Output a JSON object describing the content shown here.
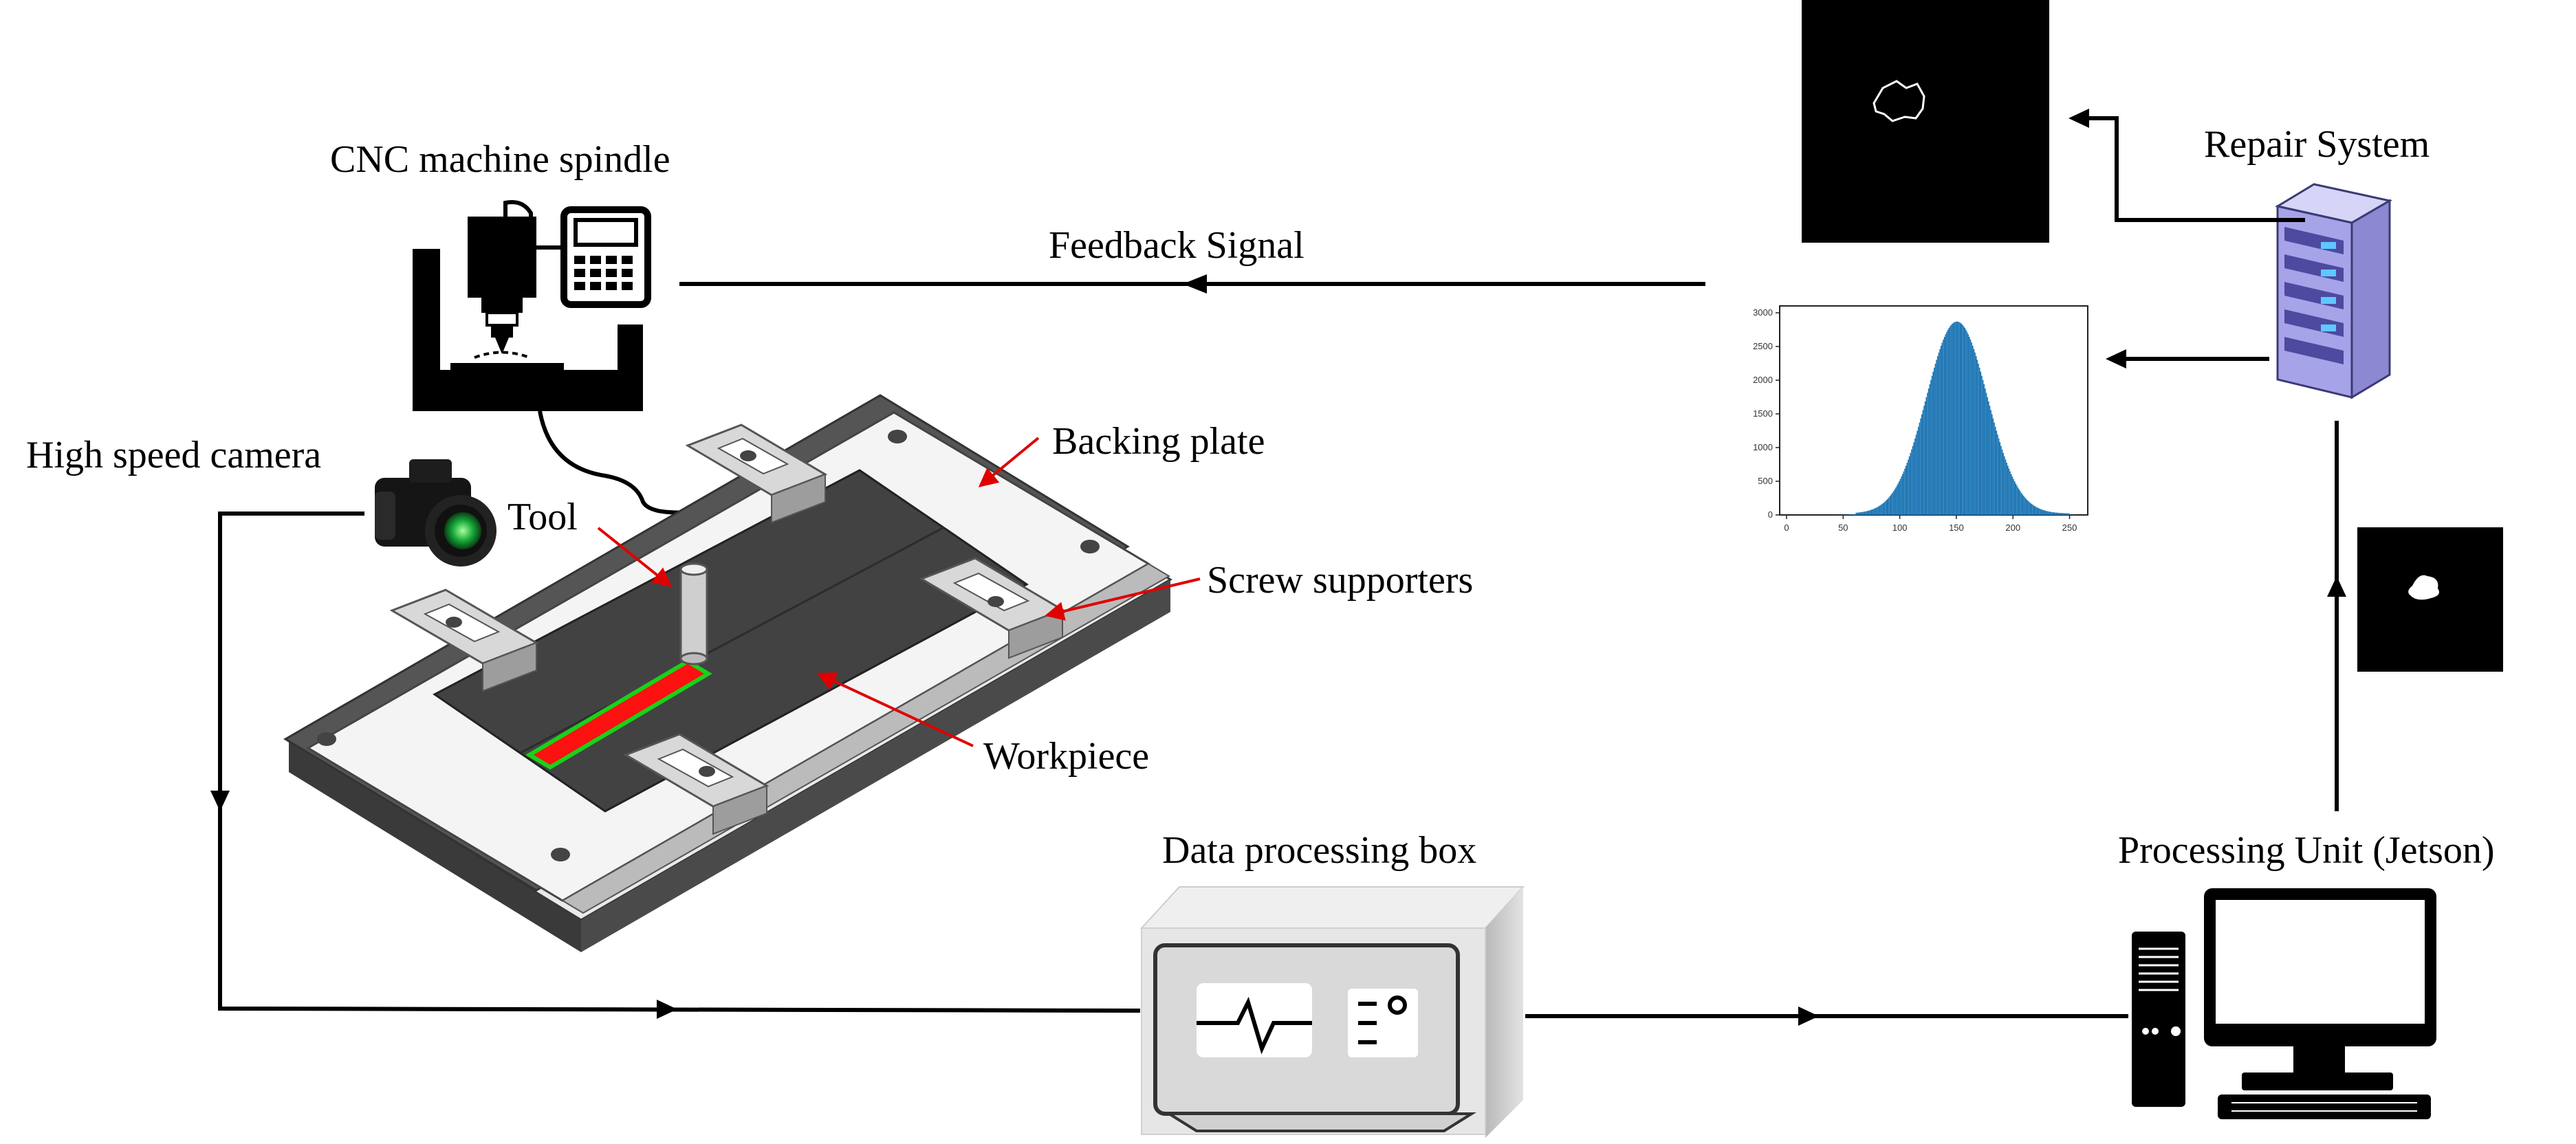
{
  "labels": {
    "cnc_spindle": "CNC machine spindle",
    "feedback_signal": "Feedback Signal",
    "repair_system": "Repair System",
    "high_speed_camera": "High speed camera",
    "tool": "Tool",
    "backing_plate": "Backing plate",
    "screw_supporters": "Screw supporters",
    "workpiece": "Workpiece",
    "data_processing_box": "Data processing box",
    "processing_unit": "Processing Unit (Jetson)"
  },
  "histogram": {
    "x_ticks": [
      "0",
      "50",
      "100",
      "150",
      "200",
      "250"
    ],
    "y_ticks": [
      "0",
      "500",
      "1000",
      "1500",
      "2000",
      "2500",
      "3000"
    ],
    "xlim": [
      0,
      260
    ],
    "ylim": [
      0,
      3000
    ],
    "mean": 150,
    "sd": 27,
    "peak": 2850,
    "color": "#1f77b4"
  },
  "colors": {
    "arrow": "#000000",
    "annotation": "#e00000",
    "weld": "#ff1010",
    "weld_border": "#19d219",
    "server": "#a6a3e8"
  }
}
